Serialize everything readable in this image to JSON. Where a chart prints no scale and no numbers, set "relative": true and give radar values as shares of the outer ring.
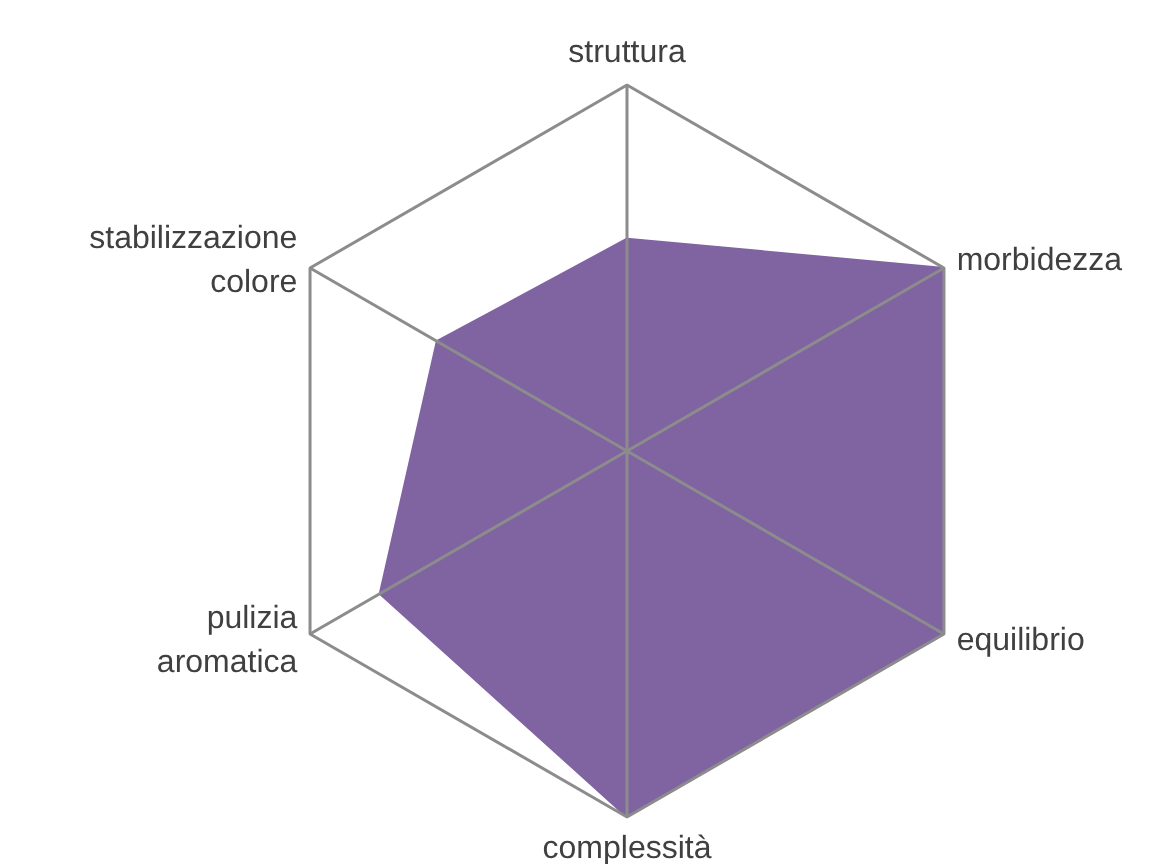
{
  "chart_data": {
    "type": "radar",
    "relative": true,
    "categories": [
      "struttura",
      "morbidezza",
      "equilibrio",
      "complessità",
      "pulizia aromatica",
      "stabilizzazione colore"
    ],
    "series": [
      {
        "color": "#8064a2",
        "values": [
          0.58,
          1,
          1,
          1,
          0.78,
          0.6
        ]
      }
    ]
  }
}
